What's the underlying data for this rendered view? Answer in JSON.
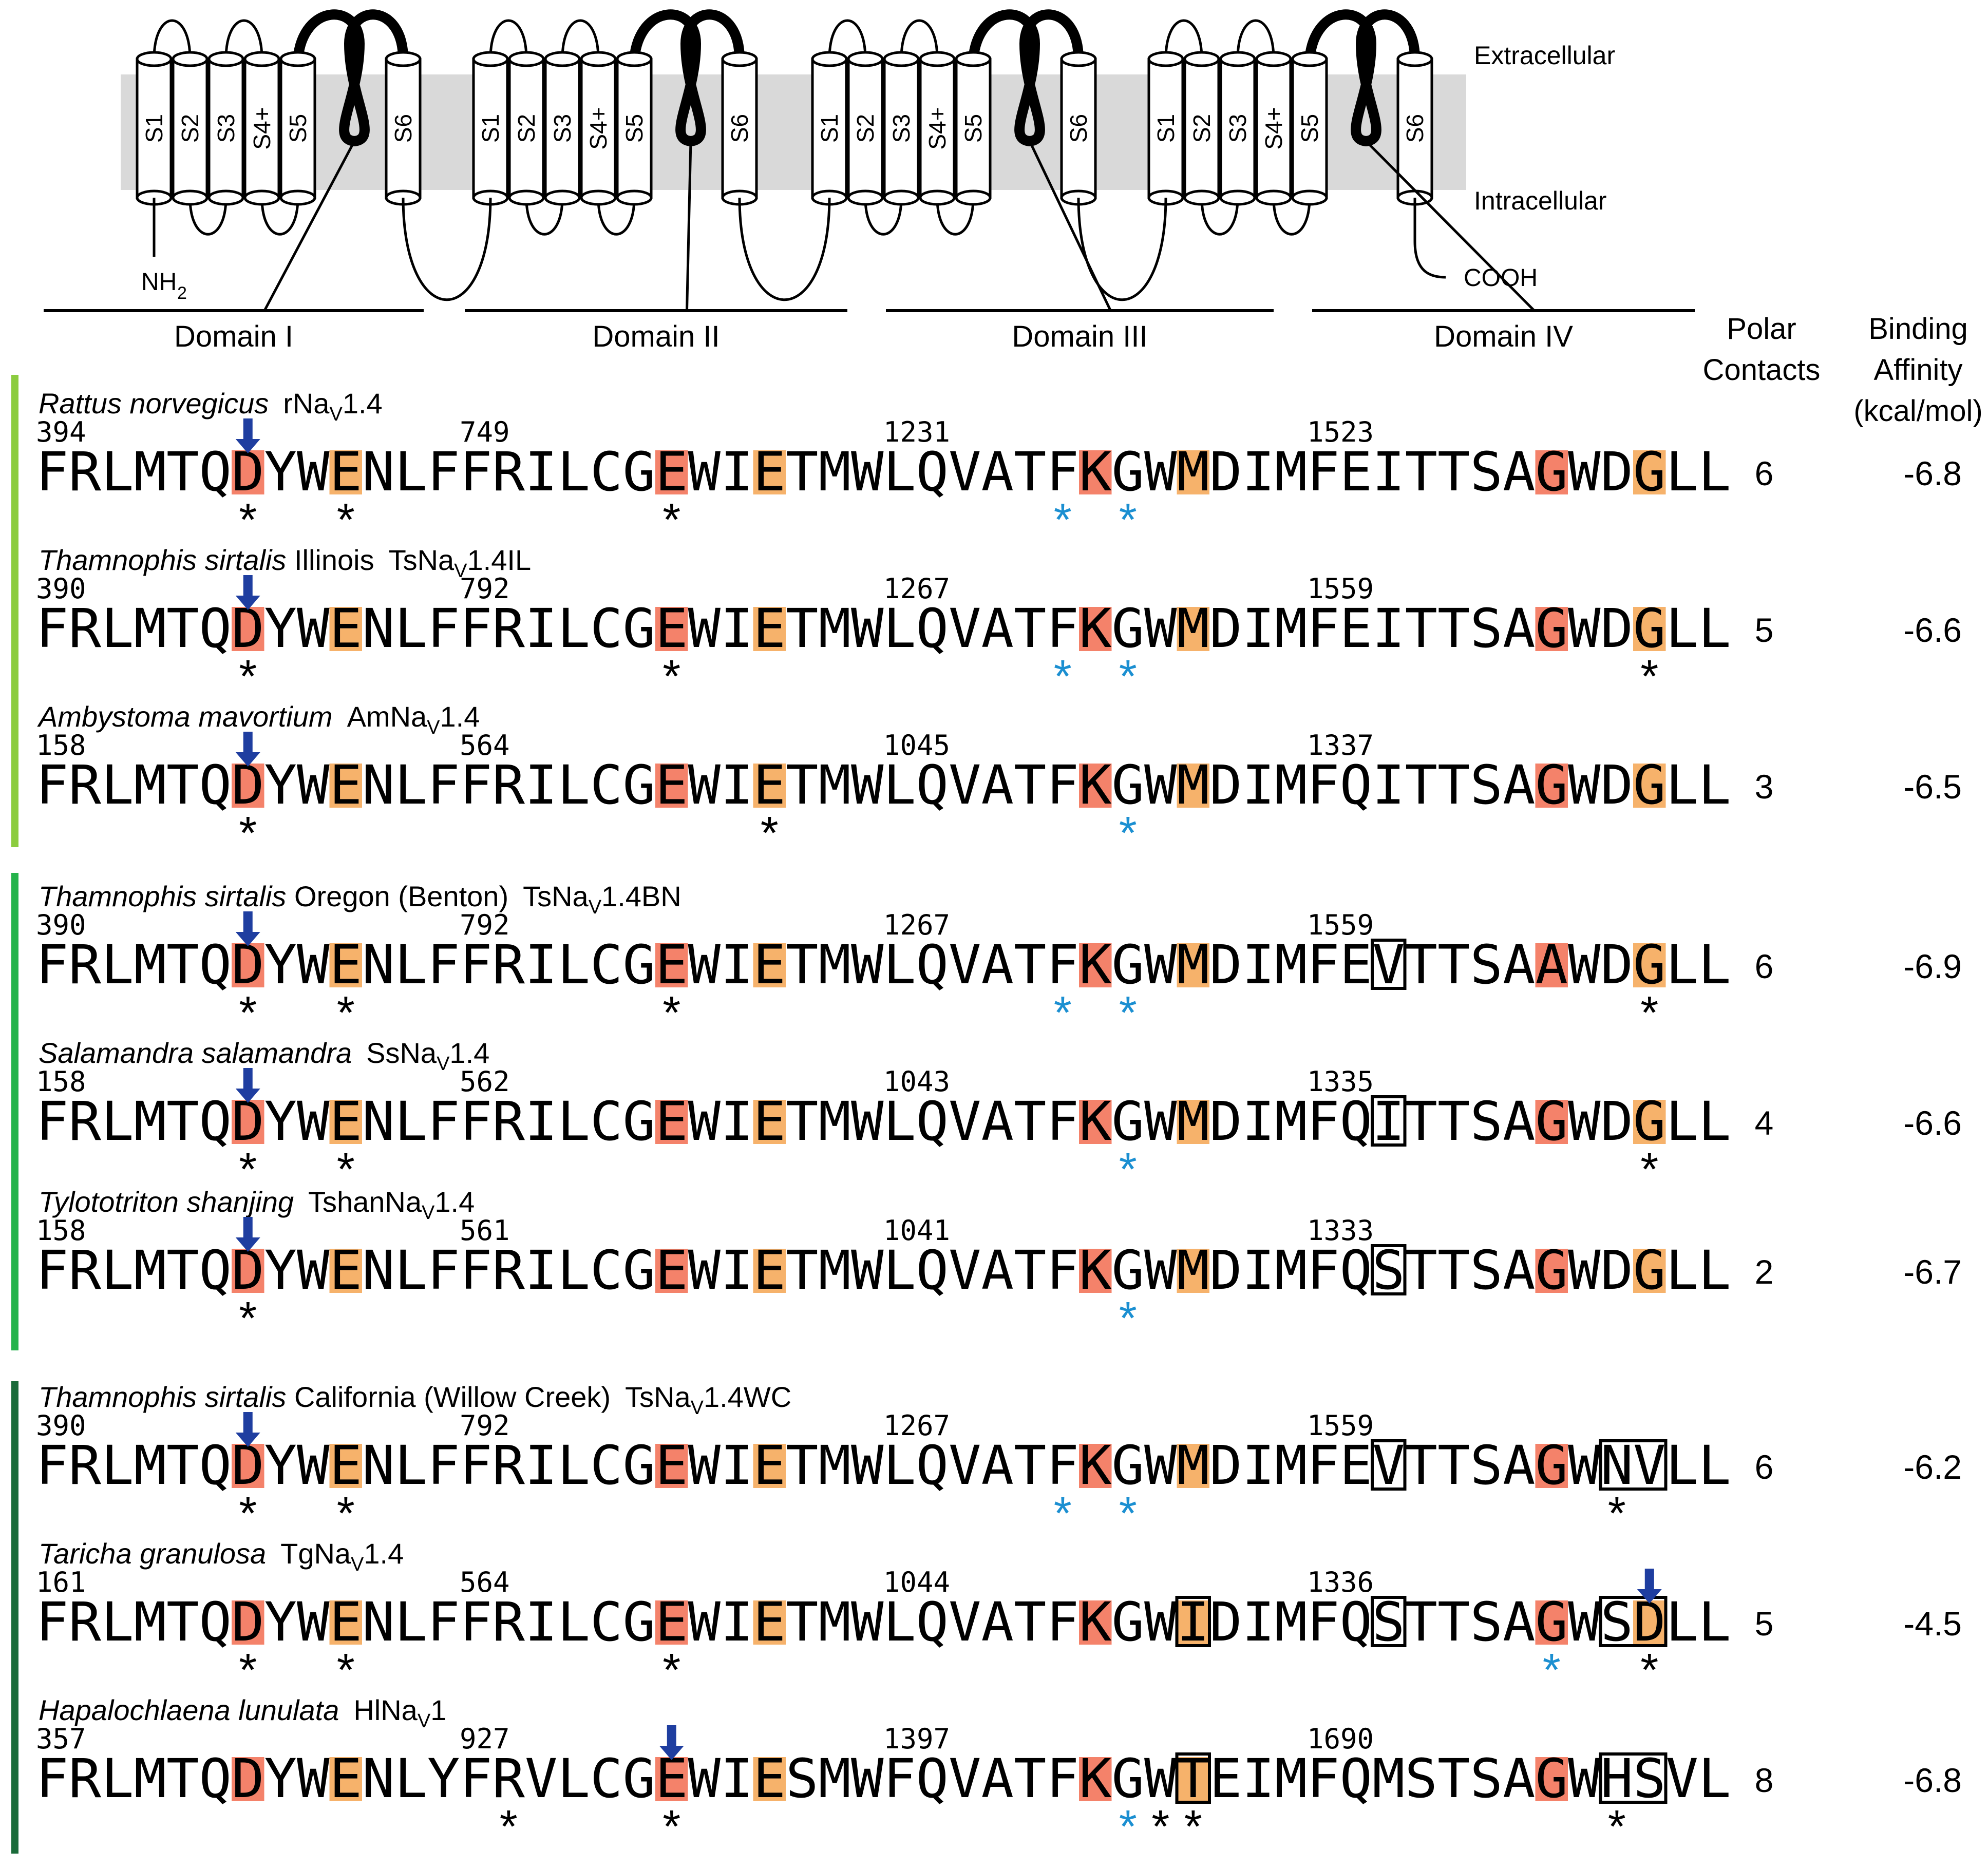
{
  "membrane": {
    "extracellular": "Extracellular",
    "intracellular": "Intracellular",
    "n_terminus": "NH",
    "n_terminus_sub": "2",
    "c_terminus": "COOH",
    "segments": [
      "S1",
      "S2",
      "S3",
      "S4+",
      "S5",
      "S6"
    ],
    "membrane_color": "#d9d9d9"
  },
  "domains": [
    "Domain I",
    "Domain II",
    "Domain III",
    "Domain IV"
  ],
  "headers": {
    "polar": [
      "Polar",
      "Contacts"
    ],
    "binding": [
      "Binding",
      "Affinity",
      "(kcal/mol)"
    ]
  },
  "colors": {
    "salmon": "#f4826a",
    "orange": "#f6b26b",
    "blue_arrow": "#1f3ea0",
    "blue_star": "#1b8fd1",
    "group1": "#8ccc3f",
    "group2": "#25b34b",
    "group3": "#1a6b3a"
  },
  "groups": [
    {
      "color": "group1",
      "rows": [
        0,
        1,
        2
      ]
    },
    {
      "color": "group2",
      "rows": [
        3,
        4,
        5
      ]
    },
    {
      "color": "group3",
      "rows": [
        6,
        7,
        8
      ]
    }
  ],
  "rows": [
    {
      "species": "Rattus norvegicus",
      "extra": "",
      "prot": "rNa",
      "sub": "V",
      "suffix": "1.4",
      "nums": [
        "394",
        "749",
        "1231",
        "1523"
      ],
      "seqs": [
        "FRLMTQDYWENLF",
        "FRILCGEWIETMW",
        "LQVATFKGWMDIM",
        "FEITTSAGWDGLL"
      ],
      "polar": "6",
      "affinity": "-6.8",
      "hl": [
        [
          [
            6,
            "s"
          ],
          [
            9,
            "o"
          ]
        ],
        [
          [
            6,
            "s"
          ],
          [
            9,
            "o"
          ]
        ],
        [
          [
            6,
            "s"
          ],
          [
            9,
            "o"
          ]
        ],
        [
          [
            7,
            "s"
          ],
          [
            10,
            "o"
          ]
        ]
      ],
      "stars": [
        [
          [
            6,
            "k"
          ],
          [
            9,
            "k"
          ]
        ],
        [
          [
            6,
            "k"
          ]
        ],
        [
          [
            5,
            "b"
          ],
          [
            7,
            "b"
          ]
        ],
        []
      ],
      "boxes": [
        [],
        [],
        [],
        []
      ],
      "arrows": [
        [
          6
        ],
        [],
        [],
        []
      ]
    },
    {
      "species": "Thamnophis sirtalis",
      "extra": " Illinois",
      "prot": "TsNa",
      "sub": "V",
      "suffix": "1.4IL",
      "nums": [
        "390",
        "792",
        "1267",
        "1559"
      ],
      "seqs": [
        "FRLMTQDYWENLF",
        "FRILCGEWIETMW",
        "LQVATFKGWMDIM",
        "FEITTSAGWDGLL"
      ],
      "polar": "5",
      "affinity": "-6.6",
      "hl": [
        [
          [
            6,
            "s"
          ],
          [
            9,
            "o"
          ]
        ],
        [
          [
            6,
            "s"
          ],
          [
            9,
            "o"
          ]
        ],
        [
          [
            6,
            "s"
          ],
          [
            9,
            "o"
          ]
        ],
        [
          [
            7,
            "s"
          ],
          [
            10,
            "o"
          ]
        ]
      ],
      "stars": [
        [
          [
            6,
            "k"
          ]
        ],
        [
          [
            6,
            "k"
          ]
        ],
        [
          [
            5,
            "b"
          ],
          [
            7,
            "b"
          ]
        ],
        [
          [
            10,
            "k"
          ]
        ]
      ],
      "boxes": [
        [],
        [],
        [],
        []
      ],
      "arrows": [
        [
          6
        ],
        [],
        [],
        []
      ]
    },
    {
      "species": "Ambystoma mavortium",
      "extra": "",
      "prot": "AmNa",
      "sub": "V",
      "suffix": "1.4",
      "nums": [
        "158",
        "564",
        "1045",
        "1337"
      ],
      "seqs": [
        "FRLMTQDYWENLF",
        "FRILCGEWIETMW",
        "LQVATFKGWMDIM",
        "FQITTSAGWDGLL"
      ],
      "polar": "3",
      "affinity": "-6.5",
      "hl": [
        [
          [
            6,
            "s"
          ],
          [
            9,
            "o"
          ]
        ],
        [
          [
            6,
            "s"
          ],
          [
            9,
            "o"
          ]
        ],
        [
          [
            6,
            "s"
          ],
          [
            9,
            "o"
          ]
        ],
        [
          [
            7,
            "s"
          ],
          [
            10,
            "o"
          ]
        ]
      ],
      "stars": [
        [
          [
            6,
            "k"
          ]
        ],
        [
          [
            9,
            "k"
          ]
        ],
        [
          [
            7,
            "b"
          ]
        ],
        []
      ],
      "boxes": [
        [],
        [],
        [],
        []
      ],
      "arrows": [
        [
          6
        ],
        [],
        [],
        []
      ]
    },
    {
      "species": "Thamnophis sirtalis",
      "extra": " Oregon (Benton)",
      "prot": "TsNa",
      "sub": "V",
      "suffix": "1.4BN",
      "nums": [
        "390",
        "792",
        "1267",
        "1559"
      ],
      "seqs": [
        "FRLMTQDYWENLF",
        "FRILCGEWIETMW",
        "LQVATFKGWMDIM",
        "FEVTTSAAWDGLL"
      ],
      "polar": "6",
      "affinity": "-6.9",
      "hl": [
        [
          [
            6,
            "s"
          ],
          [
            9,
            "o"
          ]
        ],
        [
          [
            6,
            "s"
          ],
          [
            9,
            "o"
          ]
        ],
        [
          [
            6,
            "s"
          ],
          [
            9,
            "o"
          ]
        ],
        [
          [
            7,
            "s"
          ],
          [
            10,
            "o"
          ]
        ]
      ],
      "stars": [
        [
          [
            6,
            "k"
          ],
          [
            9,
            "k"
          ]
        ],
        [
          [
            6,
            "k"
          ]
        ],
        [
          [
            5,
            "b"
          ],
          [
            7,
            "b"
          ]
        ],
        [
          [
            10,
            "k"
          ]
        ]
      ],
      "boxes": [
        [],
        [],
        [],
        [
          [
            2,
            1
          ]
        ]
      ],
      "arrows": [
        [
          6
        ],
        [],
        [],
        []
      ]
    },
    {
      "species": "Salamandra salamandra",
      "extra": "",
      "prot": "SsNa",
      "sub": "V",
      "suffix": "1.4",
      "nums": [
        "158",
        "562",
        "1043",
        "1335"
      ],
      "seqs": [
        "FRLMTQDYWENLF",
        "FRILCGEWIETMW",
        "LQVATFKGWMDIM",
        "FQITTSAGWDGLL"
      ],
      "polar": "4",
      "affinity": "-6.6",
      "hl": [
        [
          [
            6,
            "s"
          ],
          [
            9,
            "o"
          ]
        ],
        [
          [
            6,
            "s"
          ],
          [
            9,
            "o"
          ]
        ],
        [
          [
            6,
            "s"
          ],
          [
            9,
            "o"
          ]
        ],
        [
          [
            7,
            "s"
          ],
          [
            10,
            "o"
          ]
        ]
      ],
      "stars": [
        [
          [
            6,
            "k"
          ],
          [
            9,
            "k"
          ]
        ],
        [],
        [
          [
            7,
            "b"
          ]
        ],
        [
          [
            10,
            "k"
          ]
        ]
      ],
      "boxes": [
        [],
        [],
        [],
        [
          [
            2,
            1
          ]
        ]
      ],
      "arrows": [
        [
          6
        ],
        [],
        [],
        []
      ]
    },
    {
      "species": "Tylototriton shanjing",
      "extra": "",
      "prot": "TshanNa",
      "sub": "V",
      "suffix": "1.4",
      "nums": [
        "158",
        "561",
        "1041",
        "1333"
      ],
      "seqs": [
        "FRLMTQDYWENLF",
        "FRILCGEWIETMW",
        "LQVATFKGWMDIM",
        "FQSTTSAGWDGLL"
      ],
      "polar": "2",
      "affinity": "-6.7",
      "hl": [
        [
          [
            6,
            "s"
          ],
          [
            9,
            "o"
          ]
        ],
        [
          [
            6,
            "s"
          ],
          [
            9,
            "o"
          ]
        ],
        [
          [
            6,
            "s"
          ],
          [
            9,
            "o"
          ]
        ],
        [
          [
            7,
            "s"
          ],
          [
            10,
            "o"
          ]
        ]
      ],
      "stars": [
        [
          [
            6,
            "k"
          ]
        ],
        [],
        [
          [
            7,
            "b"
          ]
        ],
        []
      ],
      "boxes": [
        [],
        [],
        [],
        [
          [
            2,
            1
          ]
        ]
      ],
      "arrows": [
        [
          6
        ],
        [],
        [],
        []
      ]
    },
    {
      "species": "Thamnophis sirtalis",
      "extra": " California (Willow Creek)",
      "prot": "TsNa",
      "sub": "V",
      "suffix": "1.4WC",
      "nums": [
        "390",
        "792",
        "1267",
        "1559"
      ],
      "seqs": [
        "FRLMTQDYWENLF",
        "FRILCGEWIETMW",
        "LQVATFKGWMDIM",
        "FEVTTSAGWNVLL"
      ],
      "polar": "6",
      "affinity": "-6.2",
      "hl": [
        [
          [
            6,
            "s"
          ],
          [
            9,
            "o"
          ]
        ],
        [
          [
            6,
            "s"
          ],
          [
            9,
            "o"
          ]
        ],
        [
          [
            6,
            "s"
          ],
          [
            9,
            "o"
          ]
        ],
        [
          [
            7,
            "s"
          ]
        ]
      ],
      "stars": [
        [
          [
            6,
            "k"
          ],
          [
            9,
            "k"
          ]
        ],
        [],
        [
          [
            5,
            "b"
          ],
          [
            7,
            "b"
          ]
        ],
        [
          [
            9,
            "k"
          ]
        ]
      ],
      "boxes": [
        [],
        [],
        [],
        [
          [
            2,
            1
          ],
          [
            9,
            2
          ]
        ]
      ],
      "arrows": [
        [
          6
        ],
        [],
        [],
        []
      ]
    },
    {
      "species": "Taricha granulosa",
      "extra": "",
      "prot": "TgNa",
      "sub": "V",
      "suffix": "1.4",
      "nums": [
        "161",
        "564",
        "1044",
        "1336"
      ],
      "seqs": [
        "FRLMTQDYWENLF",
        "FRILCGEWIETMW",
        "LQVATFKGWIDIM",
        "FQSTTSAGWSDLL"
      ],
      "polar": "5",
      "affinity": "-4.5",
      "hl": [
        [
          [
            6,
            "s"
          ],
          [
            9,
            "o"
          ]
        ],
        [
          [
            6,
            "s"
          ],
          [
            9,
            "o"
          ]
        ],
        [
          [
            6,
            "s"
          ],
          [
            9,
            "o"
          ]
        ],
        [
          [
            7,
            "s"
          ],
          [
            10,
            "o"
          ]
        ]
      ],
      "stars": [
        [
          [
            6,
            "k"
          ],
          [
            9,
            "k"
          ]
        ],
        [
          [
            6,
            "k"
          ]
        ],
        [],
        [
          [
            7,
            "b"
          ],
          [
            10,
            "k"
          ]
        ]
      ],
      "boxes": [
        [],
        [],
        [
          [
            9,
            1
          ]
        ],
        [
          [
            2,
            1
          ],
          [
            9,
            2
          ]
        ]
      ],
      "arrows": [
        [],
        [],
        [],
        [
          10
        ]
      ]
    },
    {
      "species": "Hapalochlaena lunulata",
      "extra": "",
      "prot": "HlNa",
      "sub": "V",
      "suffix": "1",
      "nums": [
        "357",
        "927",
        "1397",
        "1690"
      ],
      "seqs": [
        "FRLMTQDYWENLY",
        "FRVLCGEWIESMW",
        "FQVATFKGWTEIM",
        "FQMSTSAGWHSVL"
      ],
      "polar": "8",
      "affinity": "-6.8",
      "hl": [
        [
          [
            6,
            "s"
          ],
          [
            9,
            "o"
          ]
        ],
        [
          [
            6,
            "s"
          ],
          [
            9,
            "o"
          ]
        ],
        [
          [
            6,
            "s"
          ],
          [
            9,
            "o"
          ]
        ],
        [
          [
            7,
            "s"
          ]
        ]
      ],
      "stars": [
        [],
        [
          [
            1,
            "k"
          ],
          [
            6,
            "k"
          ]
        ],
        [
          [
            7,
            "b"
          ],
          [
            8,
            "k"
          ],
          [
            9,
            "k"
          ]
        ],
        [
          [
            9,
            "k"
          ]
        ]
      ],
      "boxes": [
        [],
        [],
        [
          [
            9,
            1
          ]
        ],
        [
          [
            9,
            2
          ]
        ]
      ],
      "arrows": [
        [],
        [
          6
        ],
        [],
        []
      ]
    }
  ]
}
